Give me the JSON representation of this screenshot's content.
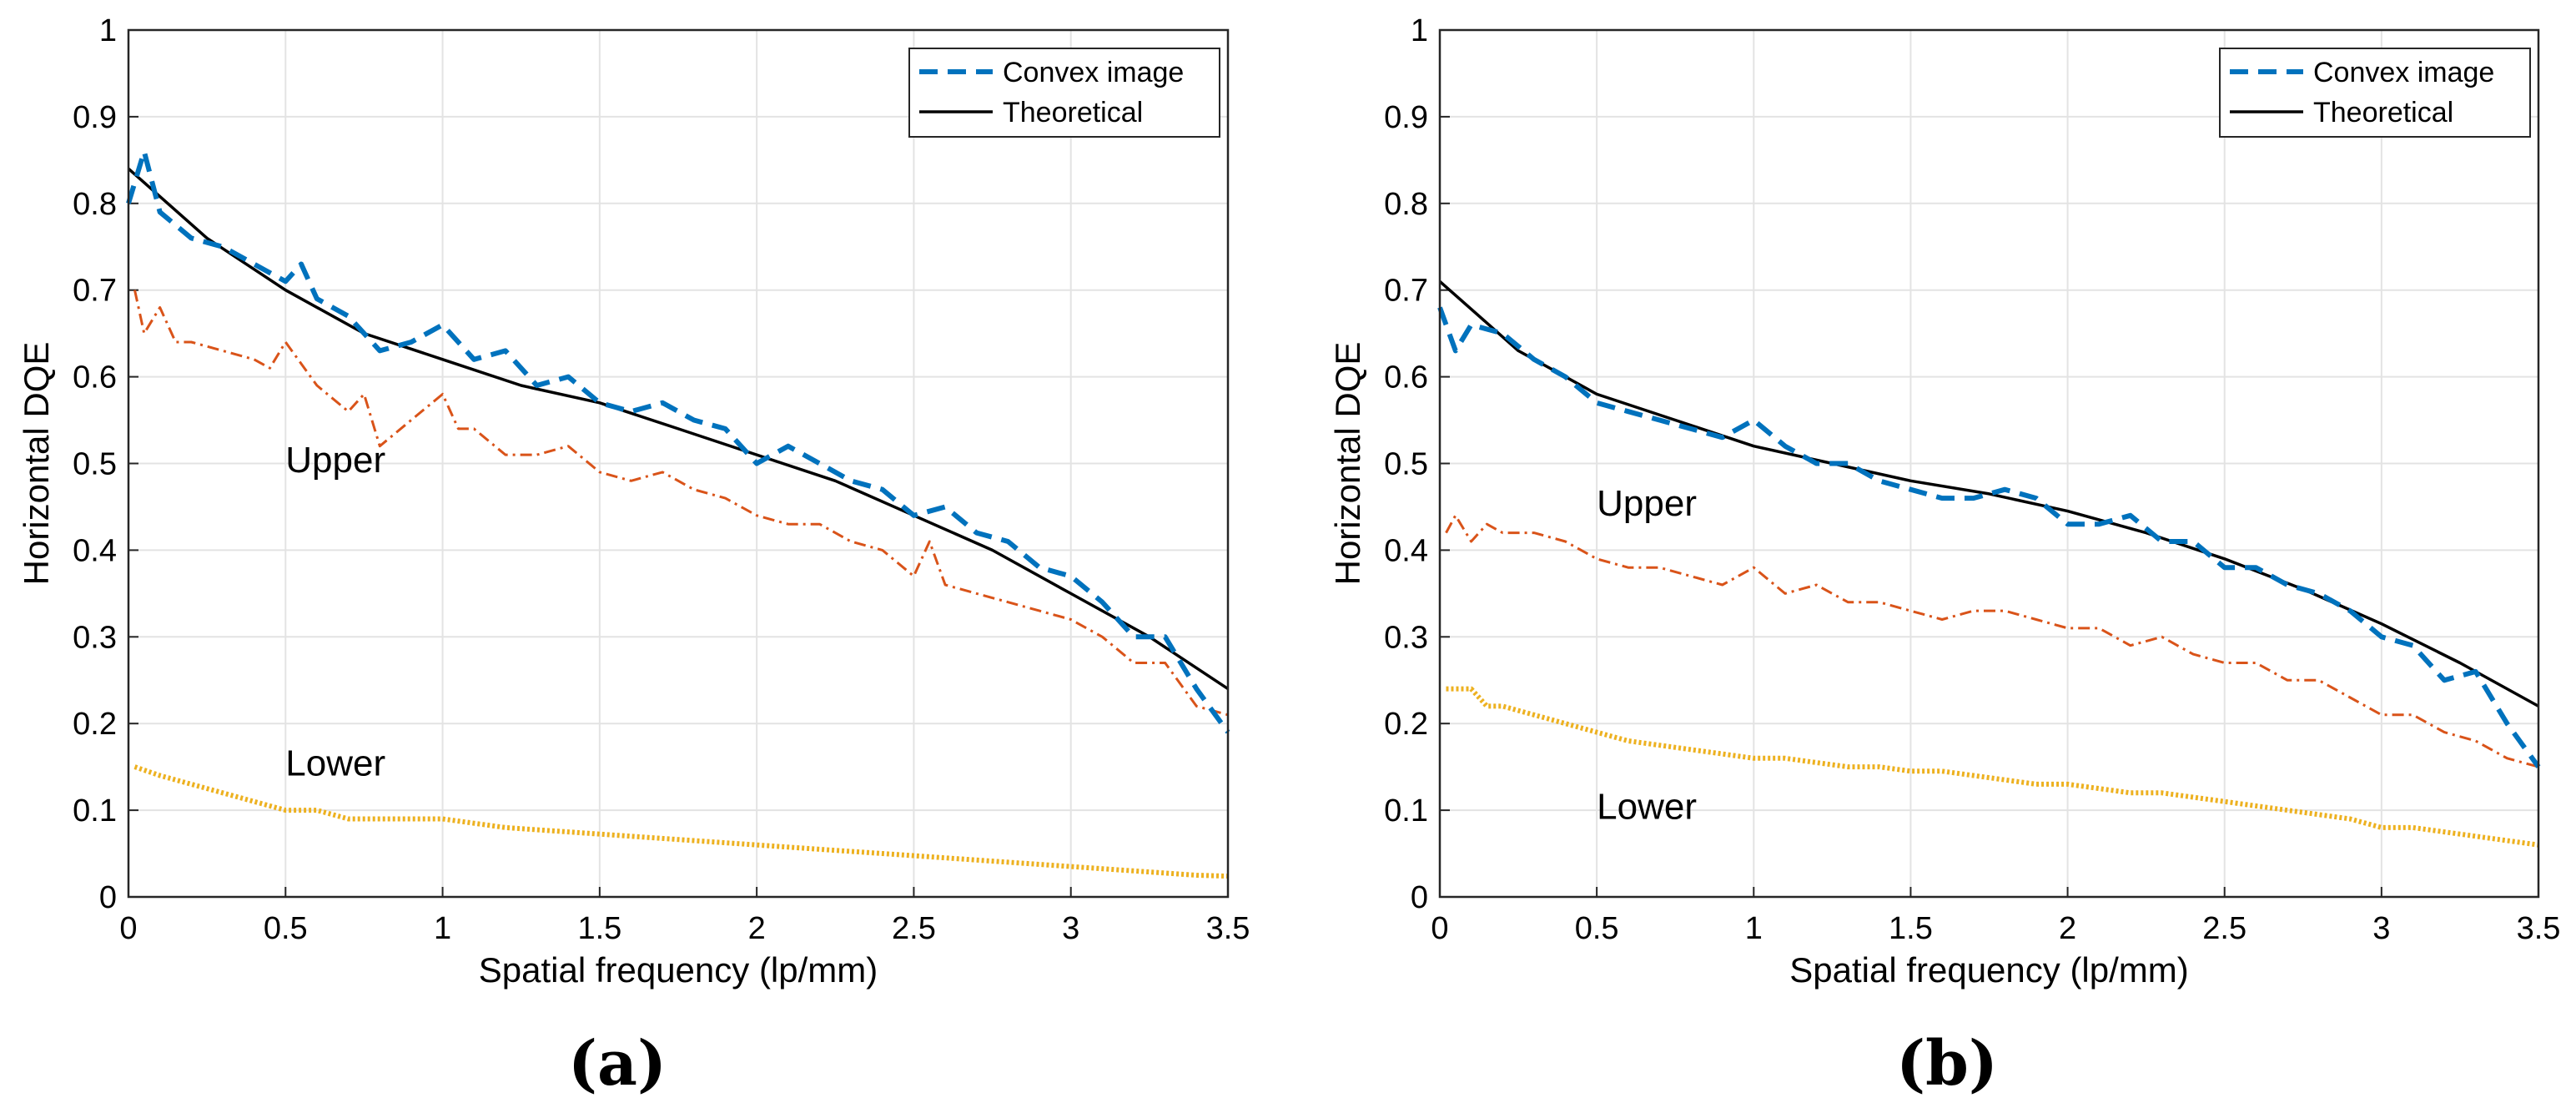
{
  "chart_data": [
    {
      "type": "line",
      "panel_label": "(a)",
      "xlabel": "Spatial frequency (lp/mm)",
      "ylabel": "Horizontal DQE",
      "xlim": [
        0,
        3.5
      ],
      "ylim": [
        0,
        1
      ],
      "grid": true,
      "legend_position": "top-right",
      "xticks": [
        "0",
        "0.5",
        "1",
        "1.5",
        "2",
        "2.5",
        "3",
        "3.5"
      ],
      "yticks": [
        "0",
        "0.1",
        "0.2",
        "0.3",
        "0.4",
        "0.5",
        "0.6",
        "0.7",
        "0.8",
        "0.9",
        "1"
      ],
      "annotations": [
        {
          "text": "Upper",
          "x": 0.5,
          "y": 0.49
        },
        {
          "text": "Lower",
          "x": 0.5,
          "y": 0.14
        }
      ],
      "series": [
        {
          "name": "Convex image",
          "legend": true,
          "style": "dashed",
          "color": "#0072BD",
          "x": [
            0,
            0.05,
            0.1,
            0.2,
            0.3,
            0.4,
            0.5,
            0.55,
            0.6,
            0.7,
            0.8,
            0.9,
            1.0,
            1.1,
            1.2,
            1.3,
            1.4,
            1.5,
            1.6,
            1.7,
            1.8,
            1.9,
            2.0,
            2.1,
            2.2,
            2.3,
            2.4,
            2.5,
            2.6,
            2.7,
            2.8,
            2.9,
            3.0,
            3.1,
            3.2,
            3.3,
            3.4,
            3.5
          ],
          "y": [
            0.8,
            0.86,
            0.79,
            0.76,
            0.75,
            0.73,
            0.71,
            0.73,
            0.69,
            0.67,
            0.63,
            0.64,
            0.66,
            0.62,
            0.63,
            0.59,
            0.6,
            0.57,
            0.56,
            0.57,
            0.55,
            0.54,
            0.5,
            0.52,
            0.5,
            0.48,
            0.47,
            0.44,
            0.45,
            0.42,
            0.41,
            0.38,
            0.37,
            0.34,
            0.3,
            0.3,
            0.24,
            0.19
          ]
        },
        {
          "name": "Theoretical",
          "legend": true,
          "style": "solid",
          "color": "#000000",
          "x": [
            0,
            0.25,
            0.5,
            0.75,
            1.0,
            1.25,
            1.5,
            1.75,
            2.0,
            2.25,
            2.5,
            2.75,
            3.0,
            3.25,
            3.5
          ],
          "y": [
            0.84,
            0.76,
            0.7,
            0.65,
            0.62,
            0.59,
            0.57,
            0.54,
            0.51,
            0.48,
            0.44,
            0.4,
            0.35,
            0.3,
            0.24
          ]
        },
        {
          "name": "Upper",
          "legend": false,
          "style": "dashdot",
          "color": "#D95319",
          "x": [
            0.02,
            0.05,
            0.1,
            0.15,
            0.2,
            0.3,
            0.4,
            0.45,
            0.5,
            0.6,
            0.7,
            0.75,
            0.8,
            0.9,
            1.0,
            1.05,
            1.1,
            1.2,
            1.3,
            1.4,
            1.5,
            1.6,
            1.7,
            1.8,
            1.9,
            2.0,
            2.1,
            2.2,
            2.3,
            2.4,
            2.5,
            2.55,
            2.6,
            2.7,
            2.8,
            2.9,
            3.0,
            3.1,
            3.2,
            3.3,
            3.4,
            3.5
          ],
          "y": [
            0.7,
            0.65,
            0.68,
            0.64,
            0.64,
            0.63,
            0.62,
            0.61,
            0.64,
            0.59,
            0.56,
            0.58,
            0.52,
            0.55,
            0.58,
            0.54,
            0.54,
            0.51,
            0.51,
            0.52,
            0.49,
            0.48,
            0.49,
            0.47,
            0.46,
            0.44,
            0.43,
            0.43,
            0.41,
            0.4,
            0.37,
            0.41,
            0.36,
            0.35,
            0.34,
            0.33,
            0.32,
            0.3,
            0.27,
            0.27,
            0.22,
            0.21
          ]
        },
        {
          "name": "Lower",
          "legend": false,
          "style": "dotted",
          "color": "#EDB120",
          "x": [
            0.02,
            0.1,
            0.2,
            0.3,
            0.4,
            0.5,
            0.6,
            0.7,
            0.8,
            0.9,
            1.0,
            1.2,
            1.4,
            1.6,
            1.8,
            2.0,
            2.2,
            2.4,
            2.6,
            2.8,
            3.0,
            3.2,
            3.4,
            3.5
          ],
          "y": [
            0.15,
            0.14,
            0.13,
            0.12,
            0.11,
            0.1,
            0.1,
            0.09,
            0.09,
            0.09,
            0.09,
            0.08,
            0.075,
            0.07,
            0.065,
            0.06,
            0.055,
            0.05,
            0.045,
            0.04,
            0.035,
            0.03,
            0.025,
            0.024
          ]
        }
      ]
    },
    {
      "type": "line",
      "panel_label": "(b)",
      "xlabel": "Spatial frequency (lp/mm)",
      "ylabel": "Horizontal DQE",
      "xlim": [
        0,
        3.5
      ],
      "ylim": [
        0,
        1
      ],
      "grid": true,
      "legend_position": "top-right",
      "xticks": [
        "0",
        "0.5",
        "1",
        "1.5",
        "2",
        "2.5",
        "3",
        "3.5"
      ],
      "yticks": [
        "0",
        "0.1",
        "0.2",
        "0.3",
        "0.4",
        "0.5",
        "0.6",
        "0.7",
        "0.8",
        "0.9",
        "1"
      ],
      "annotations": [
        {
          "text": "Upper",
          "x": 0.5,
          "y": 0.44
        },
        {
          "text": "Lower",
          "x": 0.5,
          "y": 0.09
        }
      ],
      "series": [
        {
          "name": "Convex image",
          "legend": true,
          "style": "dashed",
          "color": "#0072BD",
          "x": [
            0,
            0.05,
            0.1,
            0.2,
            0.3,
            0.4,
            0.5,
            0.6,
            0.7,
            0.8,
            0.9,
            1.0,
            1.1,
            1.2,
            1.3,
            1.4,
            1.5,
            1.6,
            1.7,
            1.8,
            1.9,
            2.0,
            2.1,
            2.2,
            2.3,
            2.4,
            2.5,
            2.6,
            2.7,
            2.8,
            2.9,
            3.0,
            3.1,
            3.2,
            3.3,
            3.4,
            3.5
          ],
          "y": [
            0.68,
            0.63,
            0.66,
            0.65,
            0.62,
            0.6,
            0.57,
            0.56,
            0.55,
            0.54,
            0.53,
            0.55,
            0.52,
            0.5,
            0.5,
            0.48,
            0.47,
            0.46,
            0.46,
            0.47,
            0.46,
            0.43,
            0.43,
            0.44,
            0.41,
            0.41,
            0.38,
            0.38,
            0.36,
            0.35,
            0.33,
            0.3,
            0.29,
            0.25,
            0.26,
            0.2,
            0.15
          ]
        },
        {
          "name": "Theoretical",
          "legend": true,
          "style": "solid",
          "color": "#000000",
          "x": [
            0,
            0.25,
            0.5,
            0.75,
            1.0,
            1.25,
            1.5,
            1.75,
            2.0,
            2.25,
            2.5,
            2.75,
            3.0,
            3.25,
            3.5
          ],
          "y": [
            0.71,
            0.63,
            0.58,
            0.55,
            0.52,
            0.5,
            0.48,
            0.465,
            0.445,
            0.42,
            0.39,
            0.355,
            0.315,
            0.27,
            0.22
          ]
        },
        {
          "name": "Upper",
          "legend": false,
          "style": "dashdot",
          "color": "#D95319",
          "x": [
            0.02,
            0.05,
            0.1,
            0.15,
            0.2,
            0.3,
            0.4,
            0.5,
            0.6,
            0.7,
            0.8,
            0.9,
            1.0,
            1.1,
            1.2,
            1.3,
            1.4,
            1.5,
            1.6,
            1.7,
            1.8,
            1.9,
            2.0,
            2.1,
            2.2,
            2.3,
            2.4,
            2.5,
            2.6,
            2.7,
            2.8,
            2.9,
            3.0,
            3.1,
            3.2,
            3.3,
            3.4,
            3.5
          ],
          "y": [
            0.42,
            0.44,
            0.41,
            0.43,
            0.42,
            0.42,
            0.41,
            0.39,
            0.38,
            0.38,
            0.37,
            0.36,
            0.38,
            0.35,
            0.36,
            0.34,
            0.34,
            0.33,
            0.32,
            0.33,
            0.33,
            0.32,
            0.31,
            0.31,
            0.29,
            0.3,
            0.28,
            0.27,
            0.27,
            0.25,
            0.25,
            0.23,
            0.21,
            0.21,
            0.19,
            0.18,
            0.16,
            0.15
          ]
        },
        {
          "name": "Lower",
          "legend": false,
          "style": "dotted",
          "color": "#EDB120",
          "x": [
            0.02,
            0.1,
            0.15,
            0.2,
            0.3,
            0.4,
            0.5,
            0.6,
            0.7,
            0.8,
            0.9,
            1.0,
            1.1,
            1.2,
            1.3,
            1.4,
            1.5,
            1.6,
            1.7,
            1.8,
            1.9,
            2.0,
            2.1,
            2.2,
            2.3,
            2.4,
            2.5,
            2.6,
            2.7,
            2.8,
            2.9,
            3.0,
            3.1,
            3.2,
            3.3,
            3.4,
            3.5
          ],
          "y": [
            0.24,
            0.24,
            0.22,
            0.22,
            0.21,
            0.2,
            0.19,
            0.18,
            0.175,
            0.17,
            0.165,
            0.16,
            0.16,
            0.155,
            0.15,
            0.15,
            0.145,
            0.145,
            0.14,
            0.135,
            0.13,
            0.13,
            0.125,
            0.12,
            0.12,
            0.115,
            0.11,
            0.105,
            0.1,
            0.095,
            0.09,
            0.08,
            0.08,
            0.075,
            0.07,
            0.065,
            0.06
          ]
        }
      ]
    }
  ]
}
